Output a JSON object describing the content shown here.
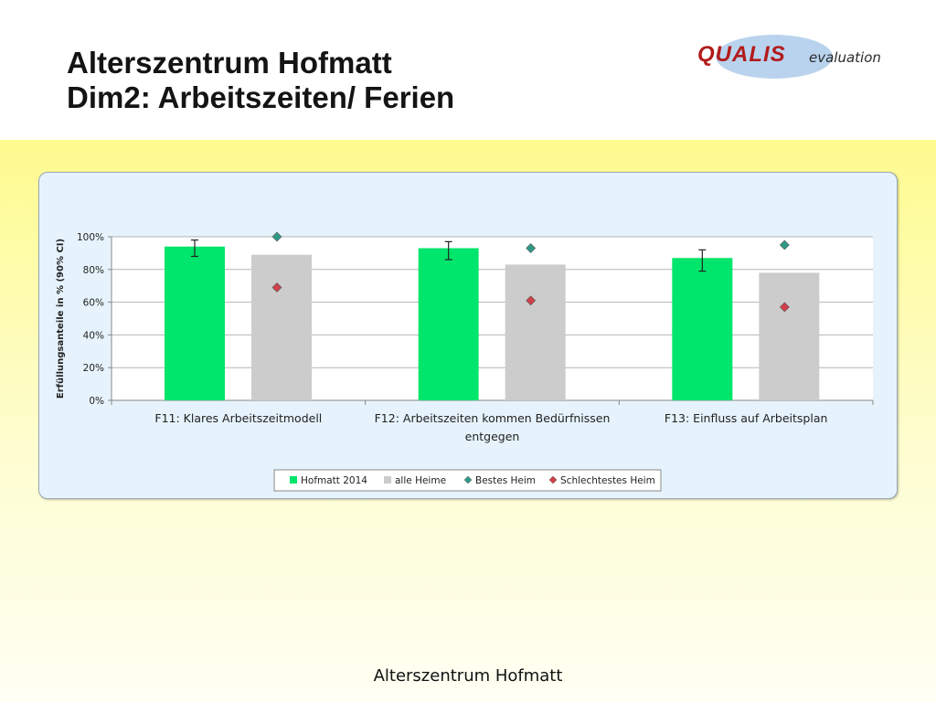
{
  "header": {
    "title_line1": "Alterszentrum Hofmatt",
    "title_line2": "Dim2: Arbeitszeiten/ Ferien"
  },
  "logo": {
    "main": "QUALIS",
    "sub": "evaluation"
  },
  "footer": {
    "text": "Alterszentrum Hofmatt"
  },
  "colors": {
    "hofmatt": "#00e56b",
    "alle_heime": "#cccccc",
    "bestes": "#2f9a86",
    "schlechtestes": "#d0404a"
  },
  "chart_data": {
    "type": "bar",
    "ylabel": "Erfüllungsanteile in % (90% CI)",
    "ylim": [
      0,
      100
    ],
    "yticks": [
      "0%",
      "20%",
      "40%",
      "60%",
      "80%",
      "100%"
    ],
    "categories": [
      [
        "F11: Klares Arbeitszeitmodell"
      ],
      [
        "F12: Arbeitszeiten kommen Bedürfnissen",
        "entgegen"
      ],
      [
        "F13: Einfluss auf Arbeitsplan"
      ]
    ],
    "series": [
      {
        "name": "Hofmatt 2014",
        "kind": "bar",
        "values": [
          94,
          93,
          87
        ],
        "ci_low": [
          88,
          86,
          79
        ],
        "ci_high": [
          98,
          97,
          92
        ]
      },
      {
        "name": "alle Heime",
        "kind": "bar",
        "values": [
          89,
          83,
          78
        ]
      },
      {
        "name": "Bestes Heim",
        "kind": "marker",
        "values": [
          100,
          93,
          95
        ]
      },
      {
        "name": "Schlechtestes Heim",
        "kind": "marker",
        "values": [
          69,
          61,
          57
        ]
      }
    ],
    "grid": true,
    "legend": "bottom"
  }
}
